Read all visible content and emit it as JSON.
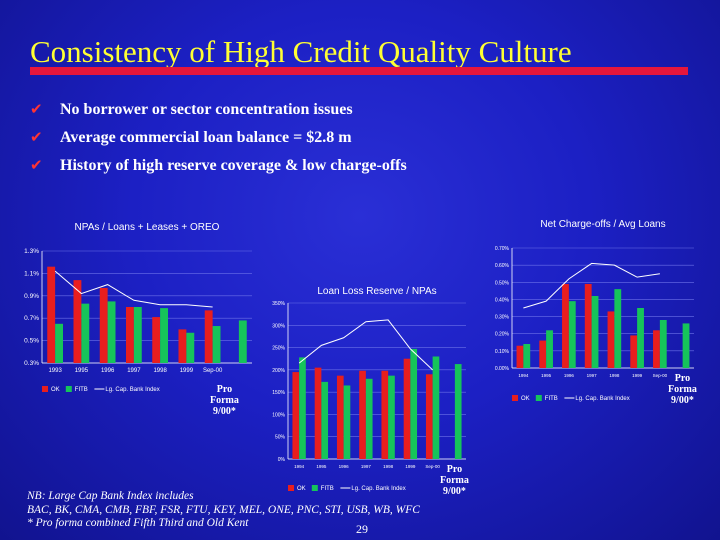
{
  "slide": {
    "title": "Consistency of High Credit Quality Culture",
    "bullets": [
      "No borrower or sector concentration issues",
      "Average commercial loan balance = $2.8 m",
      "History of high reserve coverage & low charge-offs"
    ],
    "footnote_lines": [
      "NB: Large Cap Bank Index includes",
      "BAC, BK, CMA, CMB, FBF, FSR, FTU, KEY, MEL, ONE, PNC, STI, USB, WB, WFC",
      "* Pro forma combined Fifth Third and Old Kent"
    ],
    "page_number": "29",
    "proforma_label": [
      "Pro",
      "Forma",
      "9/00*"
    ]
  },
  "colors": {
    "ok": "#e81e1e",
    "fitb": "#16c45a",
    "index": "#ffffff",
    "title": "#ffff33",
    "rule": "#e6163c"
  },
  "chart_data": [
    {
      "type": "bar",
      "title": "NPAs / Loans + Leases + OREO",
      "categories": [
        "1993",
        "1995",
        "1996",
        "1997",
        "1998",
        "1999",
        "Sep-00",
        "Pro Forma 9/00*"
      ],
      "ylim": [
        0.3,
        1.3
      ],
      "yticks": [
        0.3,
        0.5,
        0.7,
        0.9,
        1.1,
        1.3
      ],
      "ytick_labels": [
        "0.3%",
        "0.5%",
        "0.7%",
        "0.9%",
        "1.1%",
        "1.3%"
      ],
      "series": [
        {
          "name": "OK",
          "kind": "bar",
          "color": "#e81e1e",
          "values": [
            1.16,
            1.04,
            0.97,
            0.8,
            0.71,
            0.6,
            0.77,
            null
          ]
        },
        {
          "name": "FITB",
          "kind": "bar",
          "color": "#16c45a",
          "values": [
            0.65,
            0.83,
            0.85,
            0.8,
            0.79,
            0.57,
            0.63,
            0.68
          ]
        },
        {
          "name": "Lg. Cap. Bank Index",
          "kind": "line",
          "color": "#ffffff",
          "values": [
            1.12,
            0.92,
            1.0,
            0.86,
            0.82,
            0.82,
            0.8,
            null
          ]
        }
      ],
      "legend": "bottom-left"
    },
    {
      "type": "bar",
      "title": "Loan Loss Reserve / NPAs",
      "categories": [
        "1994",
        "1995",
        "1996",
        "1997",
        "1998",
        "1999",
        "Sep-00",
        "Pro Forma 9/00*"
      ],
      "ylim": [
        0,
        350
      ],
      "yticks": [
        0,
        50,
        100,
        150,
        200,
        250,
        300,
        350
      ],
      "ytick_labels": [
        "0%",
        "50%",
        "100%",
        "150%",
        "200%",
        "250%",
        "300%",
        "350%"
      ],
      "series": [
        {
          "name": "OK",
          "kind": "bar",
          "color": "#e81e1e",
          "values": [
            195,
            205,
            187,
            198,
            198,
            225,
            190,
            null
          ]
        },
        {
          "name": "FITB",
          "kind": "bar",
          "color": "#16c45a",
          "values": [
            228,
            173,
            165,
            180,
            187,
            247,
            230,
            213
          ]
        },
        {
          "name": "Lg. Cap. Bank Index",
          "kind": "line",
          "color": "#ffffff",
          "values": [
            215,
            255,
            272,
            308,
            312,
            247,
            200,
            null
          ]
        }
      ],
      "legend": "bottom-left"
    },
    {
      "type": "bar",
      "title": "Net Charge-offs / Avg Loans",
      "categories": [
        "1994",
        "1995",
        "1996",
        "1997",
        "1998",
        "1999",
        "Sep-00",
        "Pro Forma 9/00*"
      ],
      "ylim": [
        0,
        0.7
      ],
      "yticks": [
        0,
        0.1,
        0.2,
        0.3,
        0.4,
        0.5,
        0.6,
        0.7
      ],
      "ytick_labels": [
        "0.00%",
        "0.10%",
        "0.20%",
        "0.30%",
        "0.40%",
        "0.50%",
        "0.60%",
        "0.70%"
      ],
      "series": [
        {
          "name": "OK",
          "kind": "bar",
          "color": "#e81e1e",
          "values": [
            0.13,
            0.16,
            0.49,
            0.49,
            0.33,
            0.19,
            0.22,
            null
          ]
        },
        {
          "name": "FITB",
          "kind": "bar",
          "color": "#16c45a",
          "values": [
            0.14,
            0.22,
            0.39,
            0.42,
            0.46,
            0.35,
            0.28,
            0.26
          ]
        },
        {
          "name": "Lg. Cap. Bank Index",
          "kind": "line",
          "color": "#ffffff",
          "values": [
            0.35,
            0.39,
            0.52,
            0.61,
            0.6,
            0.53,
            0.55,
            null
          ]
        }
      ],
      "legend": "bottom-left"
    }
  ]
}
